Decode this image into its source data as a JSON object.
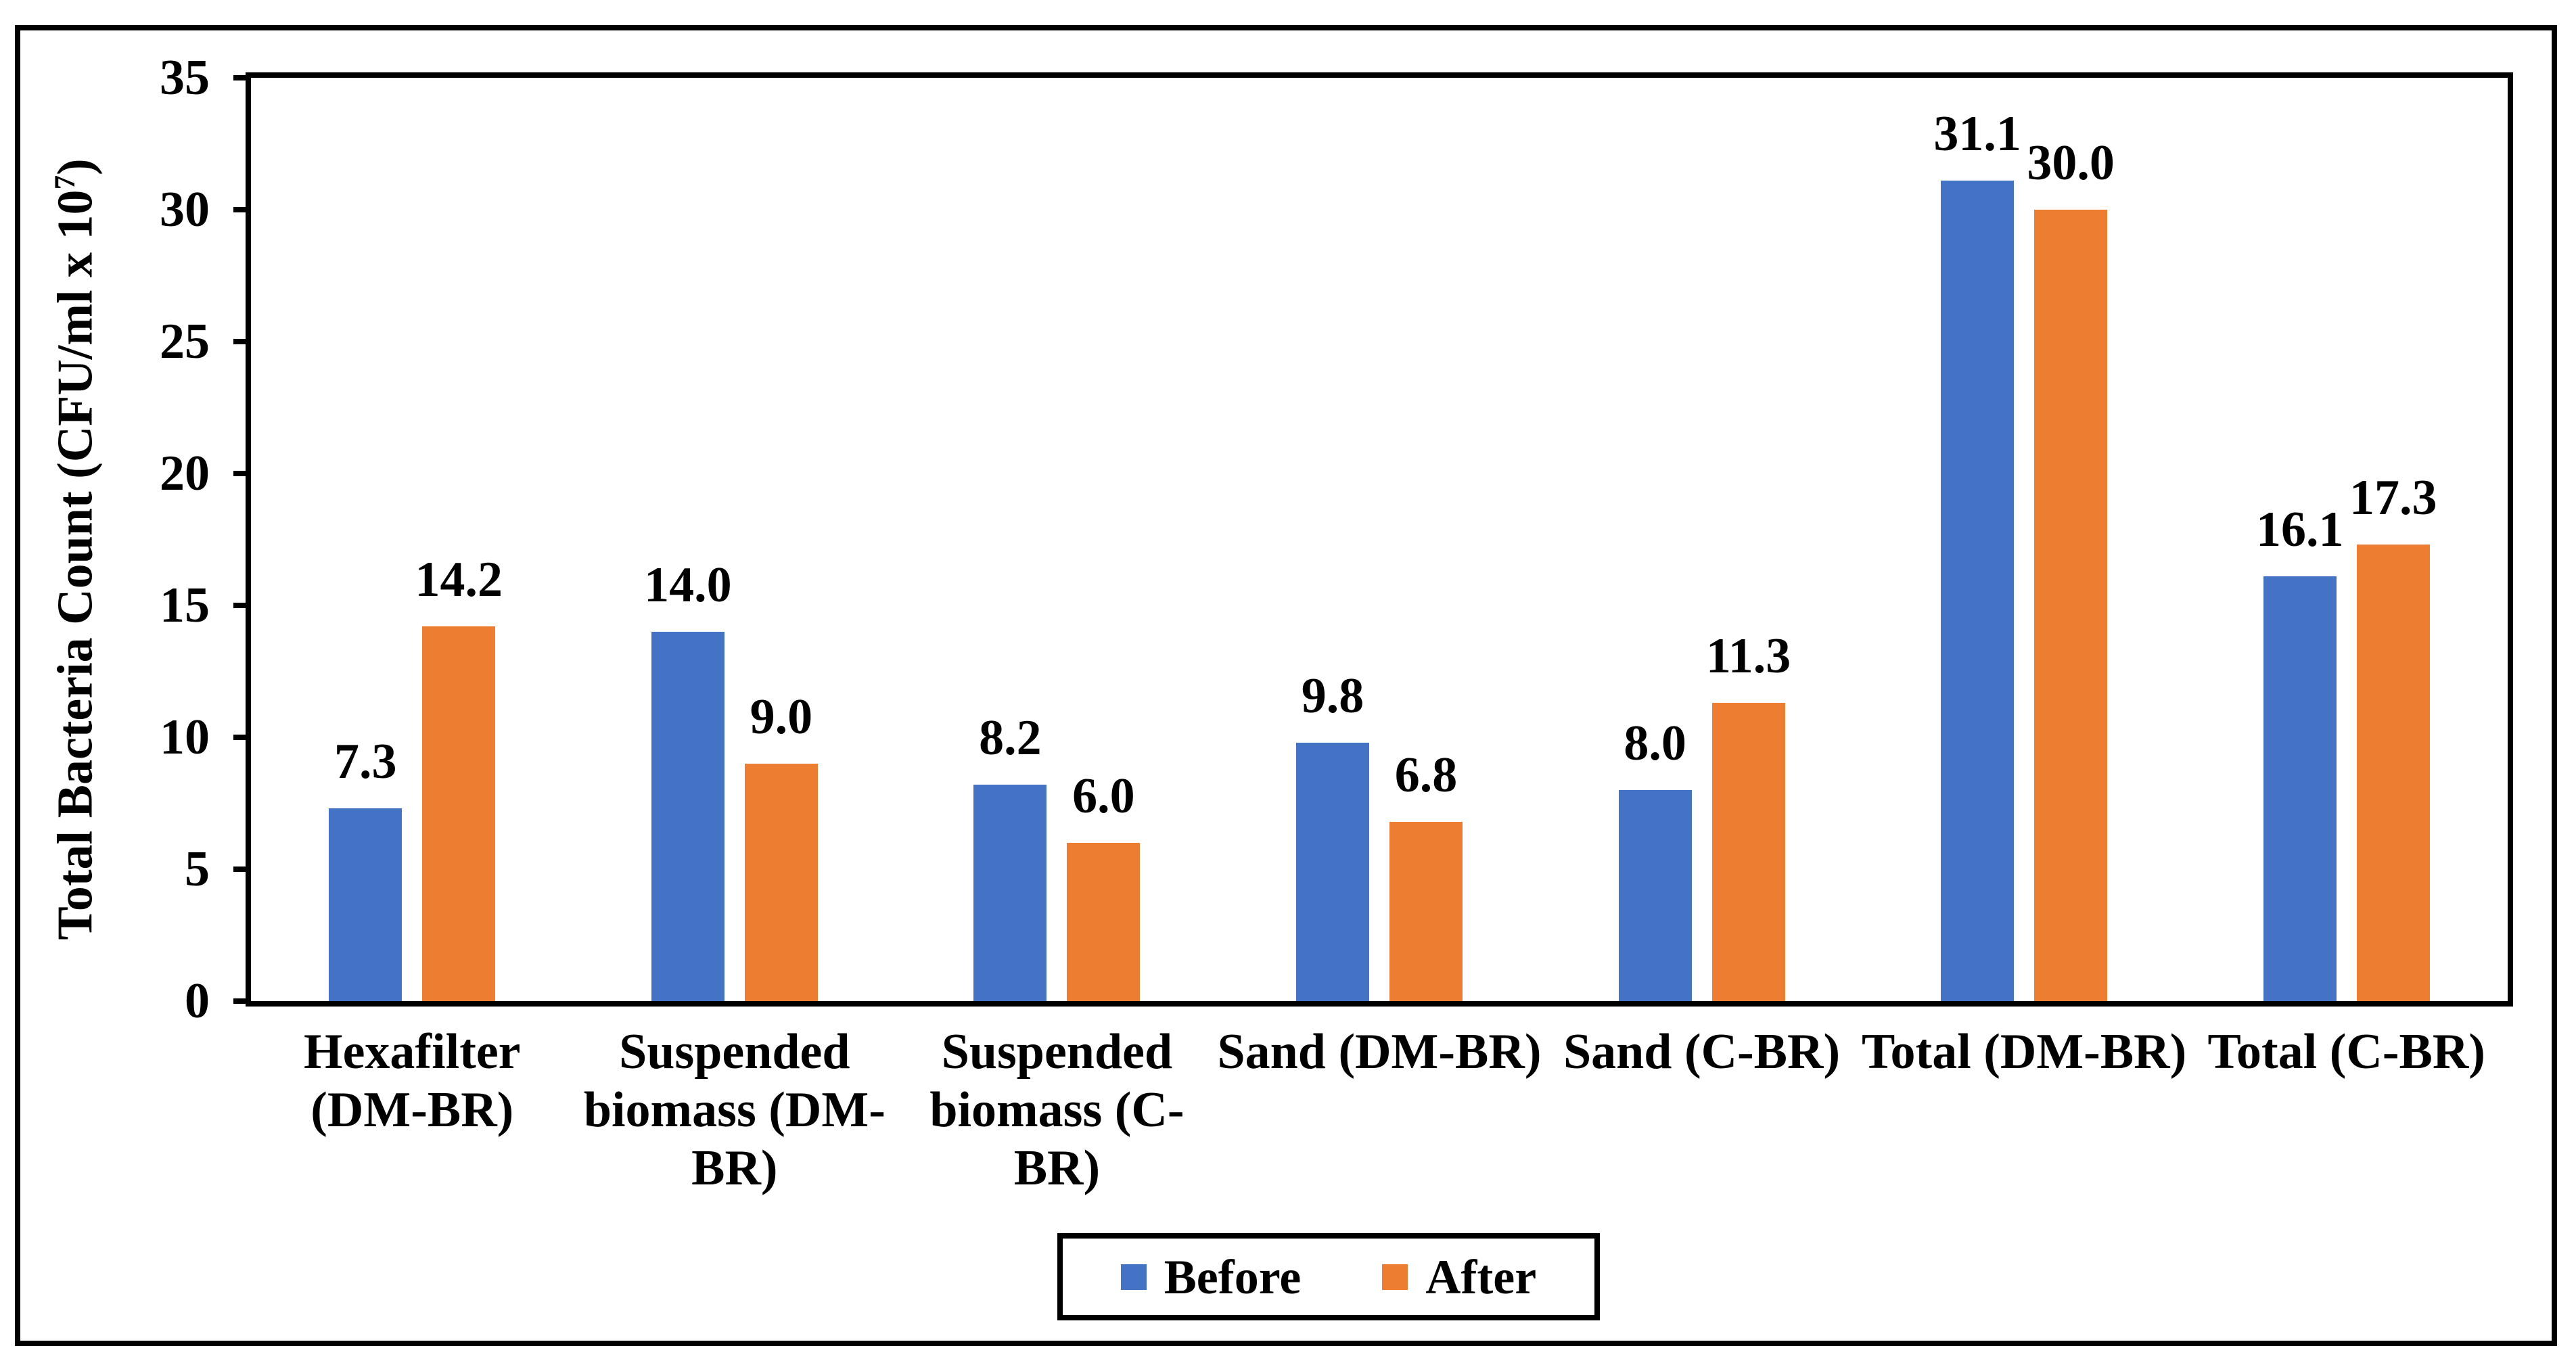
{
  "chart_data": {
    "type": "bar",
    "title": "",
    "categories": [
      "Hexafilter\n(DM-BR)",
      "Suspended\nbiomass (DM-\nBR)",
      "Suspended\nbiomass (C-\nBR)",
      "Sand (DM-BR)",
      "Sand (C-BR)",
      "Total (DM-BR)",
      "Total (C-BR)"
    ],
    "series": [
      {
        "name": "Before",
        "color": "#4472C4",
        "values": [
          7.3,
          14.0,
          8.2,
          9.8,
          8.0,
          31.1,
          16.1
        ]
      },
      {
        "name": "After",
        "color": "#ED7D31",
        "values": [
          14.2,
          9.0,
          6.0,
          6.8,
          11.3,
          30.0,
          17.3
        ]
      }
    ],
    "value_labels": [
      [
        "7.3",
        "14.0",
        "8.2",
        "9.8",
        "8.0",
        "31.1",
        "16.1"
      ],
      [
        "14.2",
        "9.0",
        "6.0",
        "6.8",
        "11.3",
        "30.0",
        "17.3"
      ]
    ],
    "ylabel": {
      "main": "Total Bacteria Count (CFU/ml x 10",
      "sup": "7",
      "close": ")"
    },
    "xlabel": "",
    "yticks": [
      0,
      5,
      10,
      15,
      20,
      25,
      30,
      35
    ],
    "ylim": [
      0,
      35
    ],
    "grid": false,
    "legend_position": "bottom-center",
    "bar_border": "none"
  },
  "colors": {
    "before": "#4472C4",
    "after": "#ED7D31",
    "axis": "#000000",
    "background": "#FFFFFF",
    "text": "#000000"
  }
}
